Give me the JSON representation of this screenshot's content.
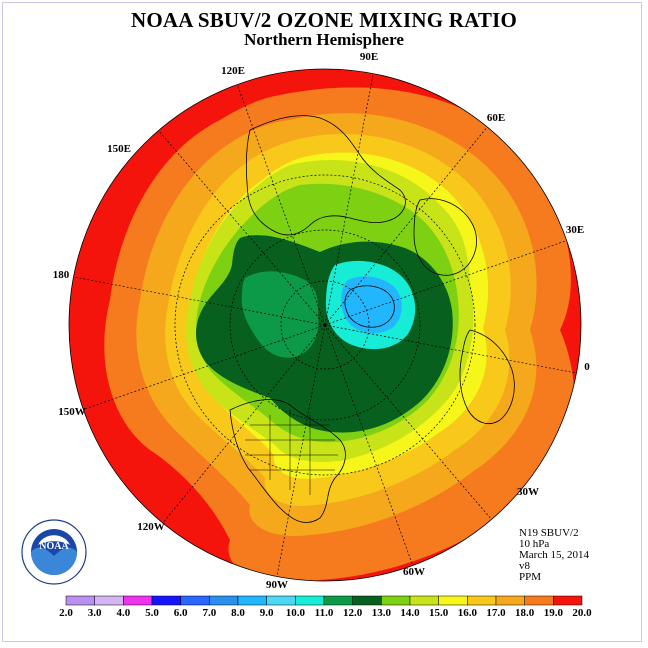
{
  "title": "NOAA SBUV/2 OZONE MIXING RATIO",
  "subtitle": "Northern Hemisphere",
  "longitudes": {
    "90E": "90E",
    "60E": "60E",
    "30E": "30E",
    "0": "0",
    "120E": "120E",
    "150E": "150E",
    "180": "180",
    "150W": "150W",
    "120W": "120W",
    "90W": "90W",
    "60W": "60W",
    "30W": "30W"
  },
  "info": {
    "instrument": "N19 SBUV/2",
    "level": "10 hPa",
    "date": "March 15, 2014",
    "version": "v8",
    "units": "PPM"
  },
  "logo": {
    "text": "NOAA",
    "seal_text": "NATIONAL OCEANIC AND ATMOSPHERIC ADMINISTRATION · U.S. DEPARTMENT OF COMMERCE"
  },
  "colorbar": {
    "labels": [
      "2.0",
      "3.0",
      "4.0",
      "5.0",
      "6.0",
      "7.0",
      "8.0",
      "9.0",
      "10.0",
      "11.0",
      "12.0",
      "13.0",
      "14.0",
      "15.0",
      "16.0",
      "17.0",
      "18.0",
      "19.0",
      "20.0"
    ],
    "colors": [
      "#b98ff0",
      "#d6b6f2",
      "#ee33ee",
      "#1414ff",
      "#2866ff",
      "#2a90ee",
      "#22b6ff",
      "#4cd8f4",
      "#17ecd6",
      "#0c9a48",
      "#08601e",
      "#7ed012",
      "#c8e418",
      "#f6f61a",
      "#f8c81a",
      "#f6a81c",
      "#f67a1e",
      "#f5140c",
      "#8a5a3a"
    ]
  }
}
